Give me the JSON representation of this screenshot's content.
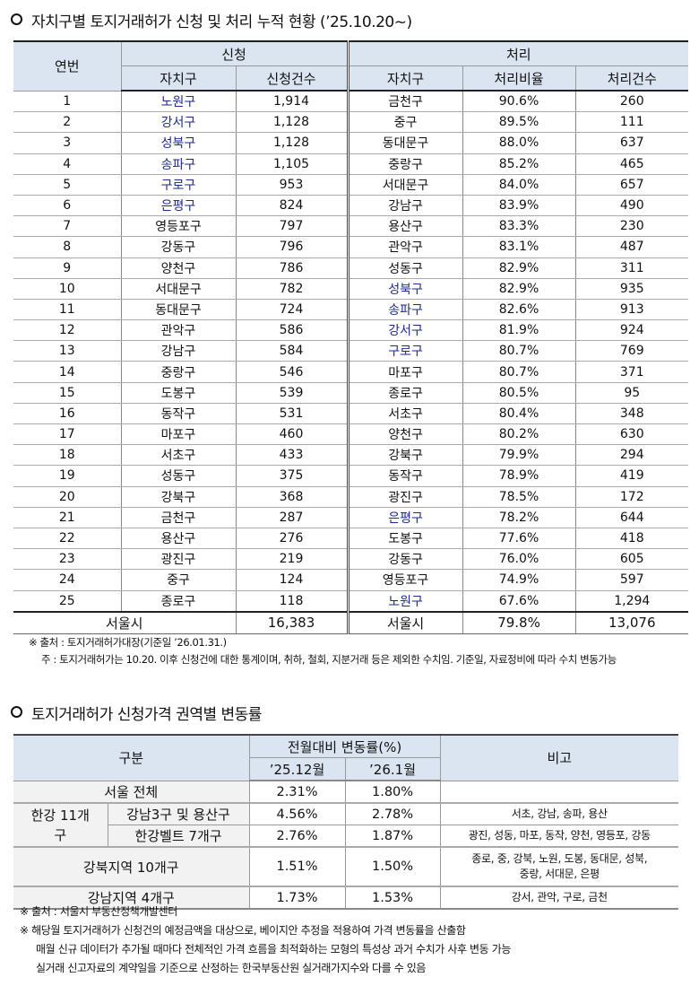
{
  "section1": {
    "title": "자치구별 토지거래허가 신청 및 처리 누적 현황 (’25.10.20~)",
    "headers": {
      "no": "연번",
      "apply": "신청",
      "process": "처리",
      "district": "자치구",
      "apply_count": "신청건수",
      "district2": "자치구",
      "rate": "처리비율",
      "process_count": "처리건수"
    },
    "rows": [
      {
        "no": "1",
        "a_district": "노원구",
        "a_blue": true,
        "a_count": "1,914",
        "p_district": "금천구",
        "p_blue": false,
        "rate": "90.6%",
        "p_count": "260"
      },
      {
        "no": "2",
        "a_district": "강서구",
        "a_blue": true,
        "a_count": "1,128",
        "p_district": "중구",
        "p_blue": false,
        "rate": "89.5%",
        "p_count": "111"
      },
      {
        "no": "3",
        "a_district": "성북구",
        "a_blue": true,
        "a_count": "1,128",
        "p_district": "동대문구",
        "p_blue": false,
        "rate": "88.0%",
        "p_count": "637"
      },
      {
        "no": "4",
        "a_district": "송파구",
        "a_blue": true,
        "a_count": "1,105",
        "p_district": "중랑구",
        "p_blue": false,
        "rate": "85.2%",
        "p_count": "465"
      },
      {
        "no": "5",
        "a_district": "구로구",
        "a_blue": true,
        "a_count": "953",
        "p_district": "서대문구",
        "p_blue": false,
        "rate": "84.0%",
        "p_count": "657"
      },
      {
        "no": "6",
        "a_district": "은평구",
        "a_blue": true,
        "a_count": "824",
        "p_district": "강남구",
        "p_blue": false,
        "rate": "83.9%",
        "p_count": "490"
      },
      {
        "no": "7",
        "a_district": "영등포구",
        "a_blue": false,
        "a_count": "797",
        "p_district": "용산구",
        "p_blue": false,
        "rate": "83.3%",
        "p_count": "230"
      },
      {
        "no": "8",
        "a_district": "강동구",
        "a_blue": false,
        "a_count": "796",
        "p_district": "관악구",
        "p_blue": false,
        "rate": "83.1%",
        "p_count": "487"
      },
      {
        "no": "9",
        "a_district": "양천구",
        "a_blue": false,
        "a_count": "786",
        "p_district": "성동구",
        "p_blue": false,
        "rate": "82.9%",
        "p_count": "311"
      },
      {
        "no": "10",
        "a_district": "서대문구",
        "a_blue": false,
        "a_count": "782",
        "p_district": "성북구",
        "p_blue": true,
        "rate": "82.9%",
        "p_count": "935"
      },
      {
        "no": "11",
        "a_district": "동대문구",
        "a_blue": false,
        "a_count": "724",
        "p_district": "송파구",
        "p_blue": true,
        "rate": "82.6%",
        "p_count": "913"
      },
      {
        "no": "12",
        "a_district": "관악구",
        "a_blue": false,
        "a_count": "586",
        "p_district": "강서구",
        "p_blue": true,
        "rate": "81.9%",
        "p_count": "924"
      },
      {
        "no": "13",
        "a_district": "강남구",
        "a_blue": false,
        "a_count": "584",
        "p_district": "구로구",
        "p_blue": true,
        "rate": "80.7%",
        "p_count": "769"
      },
      {
        "no": "14",
        "a_district": "중랑구",
        "a_blue": false,
        "a_count": "546",
        "p_district": "마포구",
        "p_blue": false,
        "rate": "80.7%",
        "p_count": "371"
      },
      {
        "no": "15",
        "a_district": "도봉구",
        "a_blue": false,
        "a_count": "539",
        "p_district": "종로구",
        "p_blue": false,
        "rate": "80.5%",
        "p_count": "95"
      },
      {
        "no": "16",
        "a_district": "동작구",
        "a_blue": false,
        "a_count": "531",
        "p_district": "서초구",
        "p_blue": false,
        "rate": "80.4%",
        "p_count": "348"
      },
      {
        "no": "17",
        "a_district": "마포구",
        "a_blue": false,
        "a_count": "460",
        "p_district": "양천구",
        "p_blue": false,
        "rate": "80.2%",
        "p_count": "630"
      },
      {
        "no": "18",
        "a_district": "서초구",
        "a_blue": false,
        "a_count": "433",
        "p_district": "강북구",
        "p_blue": false,
        "rate": "79.9%",
        "p_count": "294"
      },
      {
        "no": "19",
        "a_district": "성동구",
        "a_blue": false,
        "a_count": "375",
        "p_district": "동작구",
        "p_blue": false,
        "rate": "78.9%",
        "p_count": "419"
      },
      {
        "no": "20",
        "a_district": "강북구",
        "a_blue": false,
        "a_count": "368",
        "p_district": "광진구",
        "p_blue": false,
        "rate": "78.5%",
        "p_count": "172"
      },
      {
        "no": "21",
        "a_district": "금천구",
        "a_blue": false,
        "a_count": "287",
        "p_district": "은평구",
        "p_blue": true,
        "rate": "78.2%",
        "p_count": "644"
      },
      {
        "no": "22",
        "a_district": "용산구",
        "a_blue": false,
        "a_count": "276",
        "p_district": "도봉구",
        "p_blue": false,
        "rate": "77.6%",
        "p_count": "418"
      },
      {
        "no": "23",
        "a_district": "광진구",
        "a_blue": false,
        "a_count": "219",
        "p_district": "강동구",
        "p_blue": false,
        "rate": "76.0%",
        "p_count": "605"
      },
      {
        "no": "24",
        "a_district": "중구",
        "a_blue": false,
        "a_count": "124",
        "p_district": "영등포구",
        "p_blue": false,
        "rate": "74.9%",
        "p_count": "597"
      },
      {
        "no": "25",
        "a_district": "종로구",
        "a_blue": false,
        "a_count": "118",
        "p_district": "노원구",
        "p_blue": true,
        "rate": "67.6%",
        "p_count": "1,294"
      }
    ],
    "total": {
      "label": "서울시",
      "a_count": "16,383",
      "p_label": "서울시",
      "rate": "79.8%",
      "p_count": "13,076"
    },
    "source": "※ 출처 : 토지거래허가대장(기준일 ’26.01.31.)",
    "note": "주 : 토지거래허가는 10.20. 이후 신청건에 대한 통계이며, 취하, 철회, 지분거래 등은 제외한 수치임. 기준일, 자료정비에 따라 수치 변동가능",
    "highlight_color": "#1f2a8f",
    "header_bg": "#dbe5f1"
  },
  "section2": {
    "title": "토지거래허가 신청가격 권역별 변동률",
    "headers": {
      "category": "구분",
      "change": "전월대비 변동률(%)",
      "m1": "’25.12월",
      "m2": "’26.1월",
      "memo": "비고"
    },
    "seoul": {
      "label": "서울 전체",
      "m1": "2.31%",
      "m2": "1.80%",
      "memo": ""
    },
    "hangang_group": "한강 11개구",
    "gangnam3": {
      "label": "강남3구 및 용산구",
      "m1": "4.56%",
      "m2": "2.78%",
      "memo": "서초, 강남, 송파, 용산"
    },
    "belt": {
      "label": "한강벨트 7개구",
      "m1": "2.76%",
      "m2": "1.87%",
      "memo": "광진, 성동, 마포, 동작, 양천, 영등포, 강동"
    },
    "gangbuk": {
      "label": "강북지역 10개구",
      "m1": "1.51%",
      "m2": "1.50%",
      "memo1": "종로, 중, 강북, 노원, 도봉, 동대문, 성북,",
      "memo2": "중랑, 서대문, 은평"
    },
    "gangnam4": {
      "label": "강남지역 4개구",
      "m1": "1.73%",
      "m2": "1.53%",
      "memo": "강서, 관악, 구로, 금천"
    },
    "source": "※ 출처 : 서울시 부동산정책개발센터",
    "note1": "※ 해당월 토지거래허가 신청건의 예정금액을 대상으로, 베이지안 추정을 적용하여 가격 변동률을 산출함",
    "note2": "매월 신규 데이터가 추가될 때마다 전체적인 가격 흐름을 최적화하는 모형의 특성상 과거 수치가 사후 변동 가능",
    "note3": "실거래 신고자료의 계약일을 기준으로 산정하는 한국부동산원 실거래가지수와 다를 수 있음"
  }
}
